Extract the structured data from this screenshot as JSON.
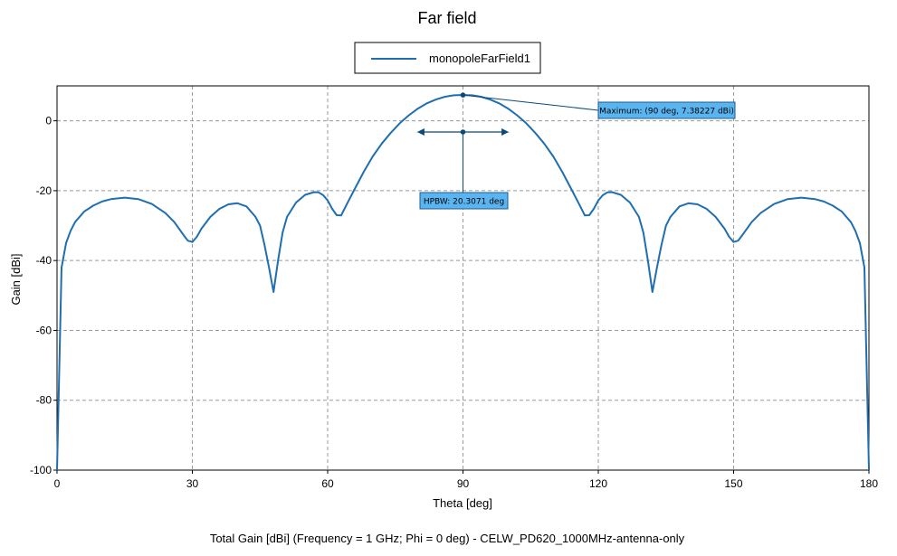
{
  "chart_data": {
    "type": "line",
    "title": "Far field",
    "xlabel": "Theta [deg]",
    "ylabel": "Gain [dBi]",
    "caption": "Total Gain [dBi] (Frequency = 1 GHz; Phi = 0 deg) - CELW_PD620_1000MHz-antenna-only",
    "xlim": [
      0,
      180
    ],
    "ylim": [
      -100,
      10
    ],
    "xticks": [
      0,
      30,
      60,
      90,
      120,
      150,
      180
    ],
    "yticks": [
      0,
      -20,
      -40,
      -60,
      -80,
      -100
    ],
    "grid": true,
    "legend_position": "top-center",
    "series": [
      {
        "name": "monopoleFarField1",
        "color": "#1f6eb0",
        "x": [
          0,
          1,
          2,
          3,
          4,
          6,
          8,
          10,
          12,
          15,
          18,
          21,
          24,
          26,
          28,
          29,
          30,
          31,
          32,
          34,
          36,
          38,
          40,
          42,
          44,
          45,
          46,
          47,
          48,
          49,
          50,
          51,
          53,
          55,
          57,
          58,
          59,
          60,
          61,
          62,
          63,
          64,
          66,
          68,
          70,
          72,
          74,
          76,
          78,
          80,
          82,
          84,
          86,
          88,
          90,
          92,
          94,
          96,
          98,
          100,
          102,
          104,
          106,
          108,
          110,
          112,
          114,
          116,
          117,
          118,
          119,
          120,
          121,
          122,
          123,
          125,
          127,
          129,
          130,
          131,
          132,
          133,
          134,
          135,
          136,
          138,
          140,
          142,
          144,
          146,
          148,
          149,
          150,
          151,
          152,
          154,
          156,
          159,
          162,
          165,
          168,
          170,
          172,
          174,
          176,
          177,
          178,
          179,
          180
        ],
        "y": [
          -100,
          -42,
          -35,
          -31.5,
          -29,
          -26,
          -24.3,
          -23.1,
          -22.4,
          -22,
          -22.4,
          -23.8,
          -26.4,
          -29,
          -32.6,
          -34.3,
          -34.7,
          -33.2,
          -30.9,
          -27.5,
          -25.2,
          -23.9,
          -23.6,
          -24.5,
          -27.5,
          -30,
          -35.5,
          -42,
          -49,
          -40,
          -32,
          -27.5,
          -23.4,
          -21.2,
          -20.4,
          -20.5,
          -21.3,
          -22.8,
          -25.2,
          -27,
          -27.1,
          -24.5,
          -19.5,
          -14.6,
          -10.2,
          -6.5,
          -3.4,
          -0.7,
          1.6,
          3.5,
          5,
          6.1,
          6.9,
          7.3,
          7.38,
          7.3,
          6.9,
          6.1,
          5,
          3.5,
          1.6,
          -0.7,
          -3.4,
          -6.5,
          -10.2,
          -14.6,
          -19.5,
          -24.5,
          -27.1,
          -27,
          -25.2,
          -22.8,
          -21.3,
          -20.5,
          -20.4,
          -21.2,
          -23.4,
          -27.5,
          -32,
          -40,
          -49,
          -42,
          -35.5,
          -30,
          -27.5,
          -24.5,
          -23.6,
          -23.9,
          -25.2,
          -27.5,
          -30.9,
          -33.2,
          -34.7,
          -34.3,
          -32.6,
          -29,
          -26.4,
          -23.8,
          -22.4,
          -22,
          -22.4,
          -23.1,
          -24.3,
          -26,
          -29,
          -31.5,
          -35,
          -42,
          -100
        ]
      }
    ],
    "annotations": {
      "maximum": {
        "label": "Maximum: (90 deg, 7.38227 dBi)",
        "point": [
          90,
          7.38227
        ]
      },
      "hpbw": {
        "label": "HPBW: 20.3071 deg",
        "left_theta": 79.85,
        "right_theta": 100.15,
        "center_theta": 90,
        "level_db": -3.3
      }
    }
  }
}
